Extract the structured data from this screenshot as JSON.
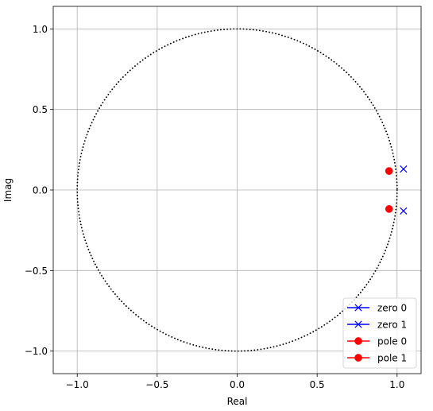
{
  "chart_data": {
    "type": "scatter",
    "title": "",
    "xlabel": "Real",
    "ylabel": "Imag",
    "xlim": [
      -1.15,
      1.15
    ],
    "ylim": [
      -1.14,
      1.14
    ],
    "xticks": [
      -1.0,
      -0.5,
      0.0,
      0.5,
      1.0
    ],
    "xtick_labels": [
      "−1.0",
      "−0.5",
      "0.0",
      "0.5",
      "1.0"
    ],
    "yticks": [
      -1.0,
      -0.5,
      0.0,
      0.5,
      1.0
    ],
    "ytick_labels": [
      "−1.0",
      "−0.5",
      "0.0",
      "0.5",
      "1.0"
    ],
    "grid": true,
    "unit_circle": {
      "radius": 1,
      "style": "dotted",
      "color": "#000000"
    },
    "legend_position": "lower-right",
    "series": [
      {
        "name": "zero 0",
        "marker": "x",
        "color": "#0000ff",
        "x": [
          1.04
        ],
        "y": [
          0.13
        ]
      },
      {
        "name": "zero 1",
        "marker": "x",
        "color": "#0000ff",
        "x": [
          1.04
        ],
        "y": [
          -0.13
        ]
      },
      {
        "name": "pole 0",
        "marker": "o",
        "color": "#ff0000",
        "x": [
          0.95
        ],
        "y": [
          0.118
        ]
      },
      {
        "name": "pole 1",
        "marker": "o",
        "color": "#ff0000",
        "x": [
          0.95
        ],
        "y": [
          -0.118
        ]
      }
    ]
  }
}
